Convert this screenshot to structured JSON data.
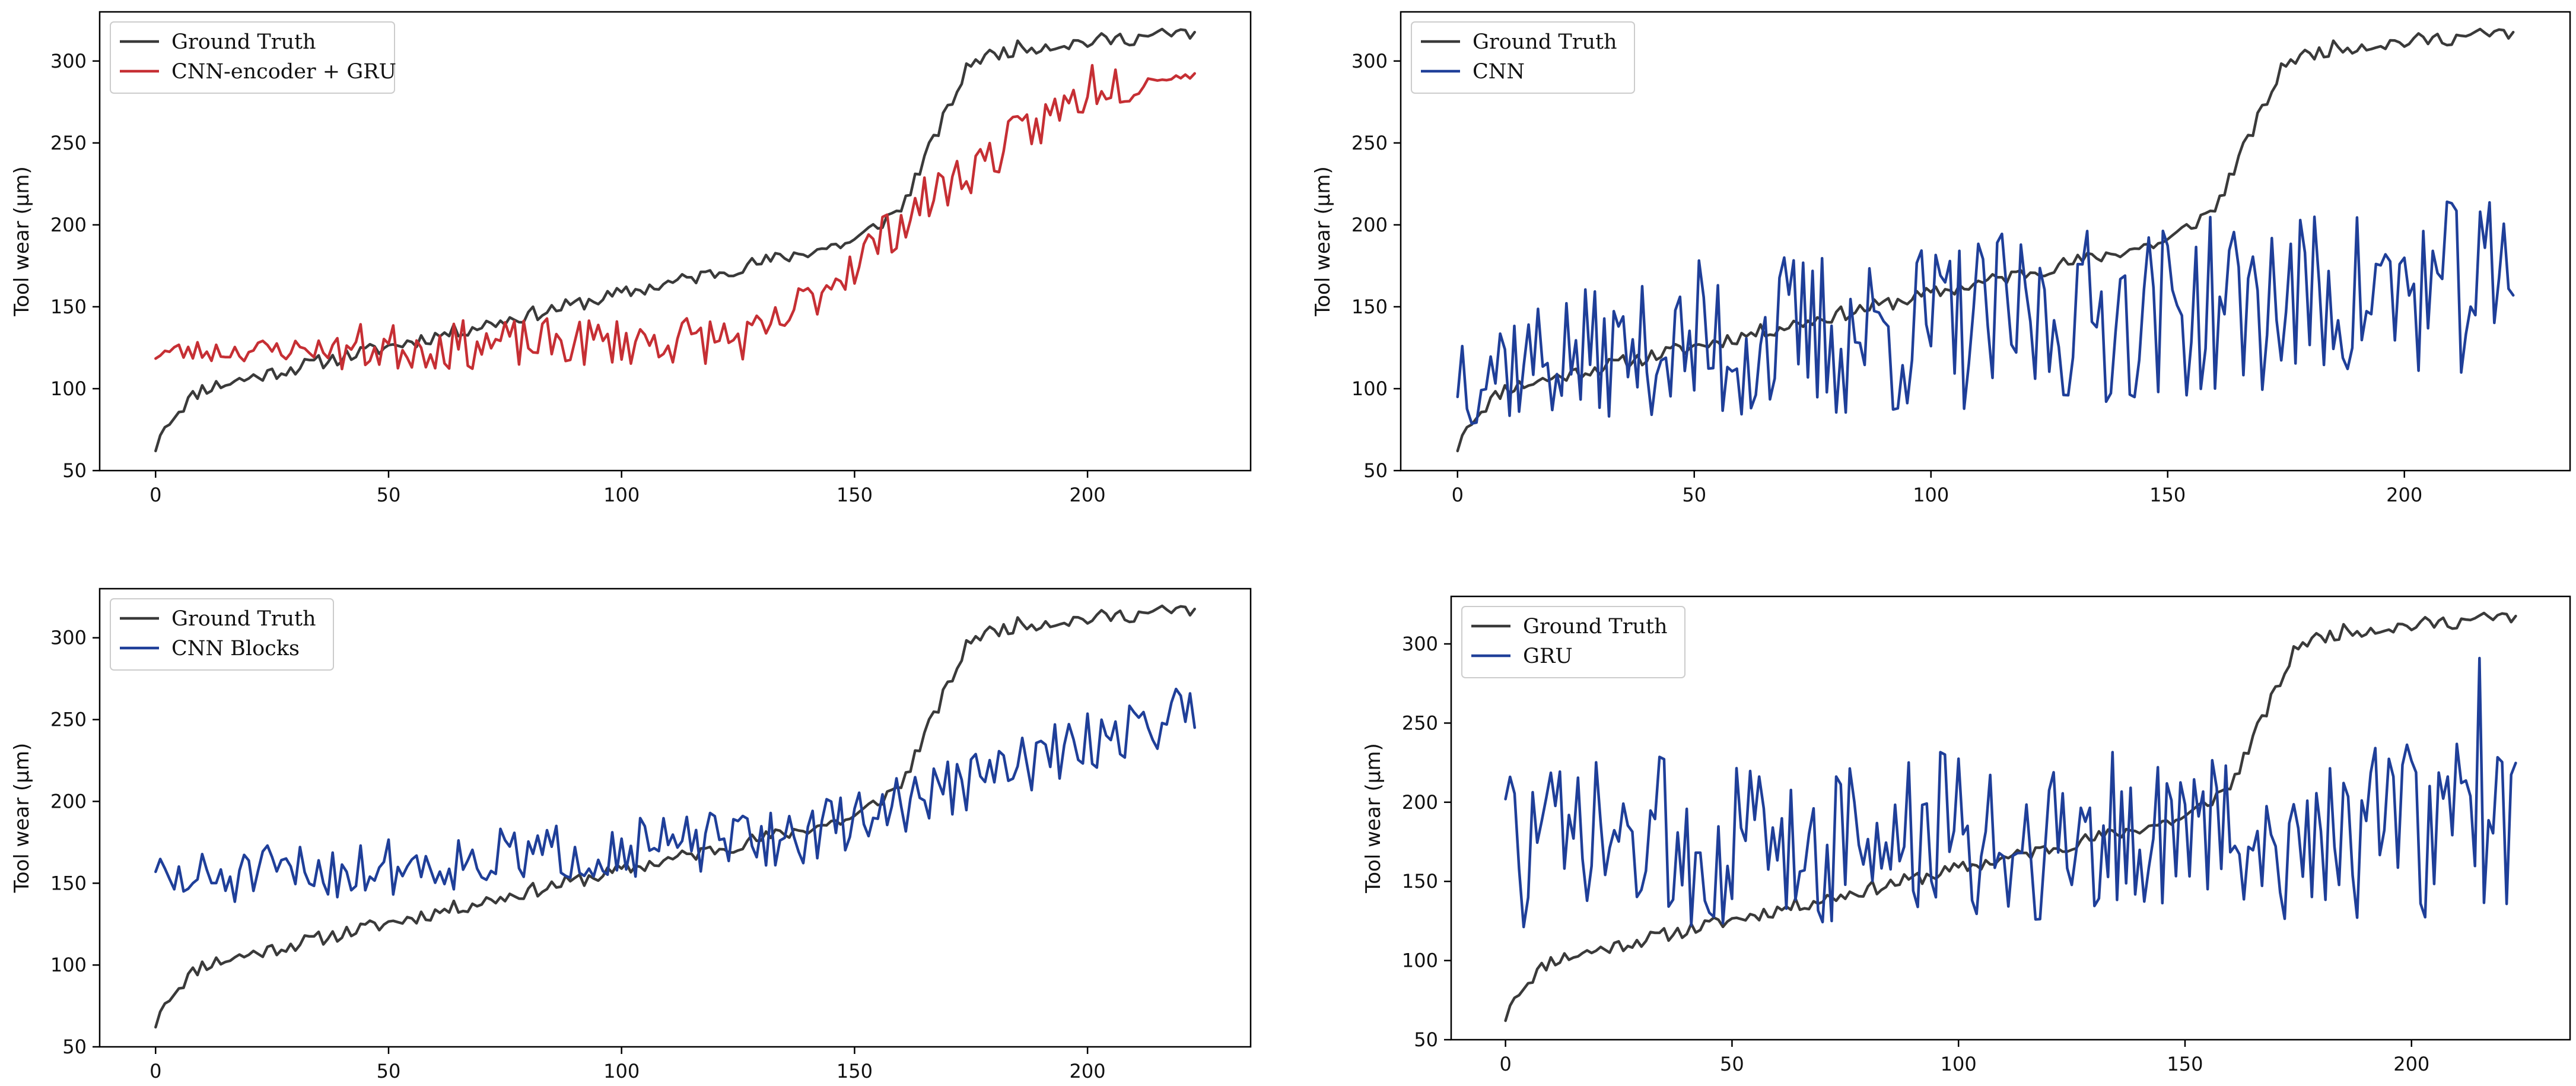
{
  "colors": {
    "ground_truth": "#3a3a3a",
    "cnn_gru": "#c62f34",
    "blue": "#1f3f99",
    "axis": "#000000"
  },
  "chart_data": [
    {
      "type": "line",
      "title": "",
      "xlabel": "",
      "ylabel": "Tool wear (µm)",
      "xlim": [
        -12,
        235
      ],
      "ylim": [
        50,
        330
      ],
      "xticks": [
        0,
        50,
        100,
        150,
        200
      ],
      "yticks": [
        50,
        100,
        150,
        200,
        250,
        300
      ],
      "legend_position": "upper-left",
      "series": [
        {
          "name": "Ground Truth",
          "color": "#3a3a3a",
          "kind": "ground_truth"
        },
        {
          "name": "CNN-encoder + GRU",
          "color": "#c62f34",
          "kind": "cnn_gru"
        }
      ]
    },
    {
      "type": "line",
      "title": "",
      "xlabel": "",
      "ylabel": "Tool wear (µm)",
      "xlim": [
        -12,
        235
      ],
      "ylim": [
        50,
        330
      ],
      "xticks": [
        0,
        50,
        100,
        150,
        200
      ],
      "yticks": [
        50,
        100,
        150,
        200,
        250,
        300
      ],
      "legend_position": "upper-left",
      "series": [
        {
          "name": "Ground Truth",
          "color": "#3a3a3a",
          "kind": "ground_truth"
        },
        {
          "name": "CNN",
          "color": "#1f3f99",
          "kind": "cnn"
        }
      ]
    },
    {
      "type": "line",
      "title": "",
      "xlabel": "",
      "ylabel": "Tool wear (µm)",
      "xlim": [
        -12,
        235
      ],
      "ylim": [
        50,
        330
      ],
      "xticks": [
        0,
        50,
        100,
        150,
        200
      ],
      "yticks": [
        50,
        100,
        150,
        200,
        250,
        300
      ],
      "legend_position": "upper-left",
      "series": [
        {
          "name": "Ground Truth",
          "color": "#3a3a3a",
          "kind": "ground_truth"
        },
        {
          "name": "CNN Blocks",
          "color": "#1f3f99",
          "kind": "cnn_blocks"
        }
      ]
    },
    {
      "type": "line",
      "title": "",
      "xlabel": "",
      "ylabel": "Tool wear (µm)",
      "xlim": [
        -12,
        235
      ],
      "ylim": [
        50,
        330
      ],
      "xticks": [
        0,
        50,
        100,
        150,
        200
      ],
      "yticks": [
        50,
        100,
        150,
        200,
        250,
        300
      ],
      "legend_position": "upper-left",
      "series": [
        {
          "name": "Ground Truth",
          "color": "#3a3a3a",
          "kind": "ground_truth"
        },
        {
          "name": "GRU",
          "color": "#1f3f99",
          "kind": "gru"
        }
      ]
    }
  ]
}
